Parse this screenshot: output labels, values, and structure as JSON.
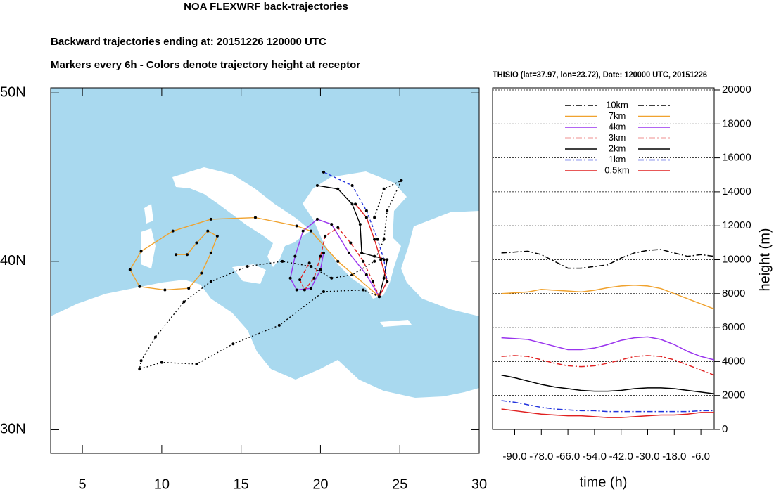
{
  "title": "NOA FLEXWRF back-trajectories",
  "subtitles": [
    "Backward trajectories ending at: 20151226  120000 UTC",
    "Markers every 6h - Colors denote trajectory height at receptor"
  ],
  "chart_data": [
    {
      "type": "trajectory",
      "xlim": [
        3,
        30
      ],
      "ylim": [
        28.6,
        50.3
      ],
      "xticks": [
        5,
        10,
        15,
        20,
        25,
        30
      ],
      "yticks": [
        {
          "value": 30,
          "label": "30N"
        },
        {
          "value": 40,
          "label": "40N"
        },
        {
          "value": 50,
          "label": "50N"
        }
      ],
      "background": "#a9d9ef",
      "series": [
        {
          "color": "#000000",
          "dash": "2,3",
          "x": [
            23.7,
            22.7,
            20.2,
            17.4,
            14.5,
            12.2,
            10.0,
            8.6,
            8.7,
            9.6,
            11.4,
            13.1,
            15.4,
            17.6,
            19.4,
            20.7,
            22.0,
            23.4,
            24.0,
            24.2,
            25.1,
            24.0,
            23.4
          ],
          "values": [
            37.9,
            38.3,
            38.2,
            36.2,
            35.1,
            33.9,
            34.0,
            33.6,
            34.1,
            35.5,
            37.6,
            38.8,
            39.7,
            40.0,
            39.7,
            39.0,
            39.2,
            40.0,
            41.3,
            43.0,
            44.8,
            44.3,
            42.6
          ]
        },
        {
          "color": "#f0a22e",
          "dash": "none",
          "x": [
            23.7,
            21.1,
            19.4,
            18.5,
            15.9,
            13.1,
            10.7,
            8.7,
            8.0,
            8.6,
            10.2,
            11.7,
            12.5,
            13.1,
            13.5,
            12.9,
            12.2,
            11.6,
            10.9
          ],
          "values": [
            37.9,
            40.0,
            41.8,
            42.1,
            42.6,
            42.5,
            41.8,
            40.6,
            39.5,
            38.5,
            38.3,
            38.4,
            39.3,
            40.5,
            41.5,
            41.8,
            41.1,
            40.4,
            40.4
          ]
        },
        {
          "color": "#9933ee",
          "dash": "none",
          "x": [
            23.7,
            22.9,
            21.8,
            20.7,
            19.8,
            18.9,
            18.4,
            18.1,
            18.5,
            19.4,
            20.0,
            20.2
          ],
          "values": [
            37.9,
            39.2,
            40.5,
            42.2,
            42.5,
            41.8,
            40.3,
            39.0,
            38.3,
            38.4,
            39.5,
            40.5
          ]
        },
        {
          "color": "#e02020",
          "dash": "5,3",
          "x": [
            23.7,
            23.3,
            22.7,
            21.9,
            21.1,
            20.3,
            20.0,
            19.6,
            19.0,
            18.7,
            19.3
          ],
          "values": [
            37.9,
            38.8,
            40.0,
            41.1,
            42.0,
            41.5,
            40.3,
            39.0,
            38.3,
            38.9,
            39.9
          ]
        },
        {
          "color": "#000000",
          "dash": "none",
          "x": [
            23.7,
            24.0,
            24.2,
            23.4,
            22.6,
            22.5,
            22.0,
            21.1,
            19.8
          ],
          "values": [
            37.9,
            39.0,
            40.1,
            40.3,
            40.5,
            42.2,
            43.4,
            44.3,
            44.5
          ]
        },
        {
          "color": "#2233dd",
          "dash": "4,3",
          "x": [
            23.7,
            24.2,
            24.0,
            23.6,
            22.9,
            22.0,
            20.2
          ],
          "values": [
            37.9,
            38.8,
            40.1,
            41.3,
            43.0,
            44.5,
            45.3
          ]
        },
        {
          "color": "#e02020",
          "dash": "none",
          "x": [
            23.7,
            24.2,
            23.8,
            23.4,
            22.9,
            22.2
          ],
          "values": [
            37.9,
            38.8,
            40.1,
            41.3,
            42.6,
            43.4
          ]
        }
      ]
    },
    {
      "type": "line",
      "title": "THISIO (lat=37.97,  lon=23.72), Date: 120000 UTC, 20151226",
      "xlabel": "time (h)",
      "ylabel": "height (m)",
      "x": [
        -96,
        -90,
        -84,
        -78,
        -72,
        -66,
        -60,
        -54,
        -48,
        -42,
        -36,
        -30,
        -24,
        -18,
        -12,
        -6,
        0
      ],
      "xlim": [
        -100,
        0
      ],
      "xticks": [
        {
          "value": -90,
          "label": "-90.0"
        },
        {
          "value": -78,
          "label": "-78.0"
        },
        {
          "value": -66,
          "label": "-66.0"
        },
        {
          "value": -54,
          "label": "-54.0"
        },
        {
          "value": -42,
          "label": "-42.0"
        },
        {
          "value": -30,
          "label": "-30.0"
        },
        {
          "value": -18,
          "label": "-18.0"
        },
        {
          "value": -6,
          "label": "-6.0"
        }
      ],
      "ylim": [
        0,
        20000
      ],
      "yticks": [
        0,
        2000,
        4000,
        6000,
        8000,
        10000,
        12000,
        14000,
        16000,
        18000,
        20000
      ],
      "grid": true,
      "legend": "top",
      "series": [
        {
          "name": "10km",
          "color": "#000000",
          "dash": "8,3,2,3",
          "values": [
            10400,
            10450,
            10500,
            10300,
            9900,
            9500,
            9500,
            9600,
            9700,
            10100,
            10400,
            10550,
            10600,
            10400,
            10200,
            10300,
            10200
          ]
        },
        {
          "name": "7km",
          "color": "#f0a22e",
          "dash": "none",
          "values": [
            8000,
            8050,
            8100,
            8250,
            8200,
            8150,
            8100,
            8200,
            8350,
            8450,
            8500,
            8450,
            8300,
            8000,
            7700,
            7400,
            7100
          ]
        },
        {
          "name": "4km",
          "color": "#9933ee",
          "dash": "none",
          "values": [
            5400,
            5350,
            5300,
            5100,
            4900,
            4700,
            4700,
            4800,
            5000,
            5250,
            5400,
            5450,
            5300,
            5000,
            4600,
            4300,
            4100
          ]
        },
        {
          "name": "3km",
          "color": "#e02020",
          "dash": "8,3,2,3",
          "values": [
            4300,
            4350,
            4300,
            4100,
            3900,
            3750,
            3700,
            3750,
            3900,
            4100,
            4300,
            4350,
            4300,
            4100,
            3800,
            3500,
            3200
          ]
        },
        {
          "name": "2km",
          "color": "#000000",
          "dash": "none",
          "values": [
            3200,
            3050,
            2850,
            2650,
            2500,
            2400,
            2300,
            2250,
            2250,
            2300,
            2400,
            2450,
            2450,
            2400,
            2300,
            2200,
            2100
          ]
        },
        {
          "name": "1km",
          "color": "#2233dd",
          "dash": "8,3,2,3",
          "values": [
            1700,
            1600,
            1450,
            1300,
            1200,
            1150,
            1100,
            1100,
            1050,
            1050,
            1050,
            1050,
            1050,
            1050,
            1050,
            1100,
            1100
          ]
        },
        {
          "name": "0.5km",
          "color": "#e02020",
          "dash": "none",
          "values": [
            1200,
            1100,
            1000,
            900,
            850,
            800,
            800,
            750,
            700,
            700,
            750,
            800,
            850,
            850,
            900,
            1000,
            1000
          ]
        }
      ]
    }
  ]
}
